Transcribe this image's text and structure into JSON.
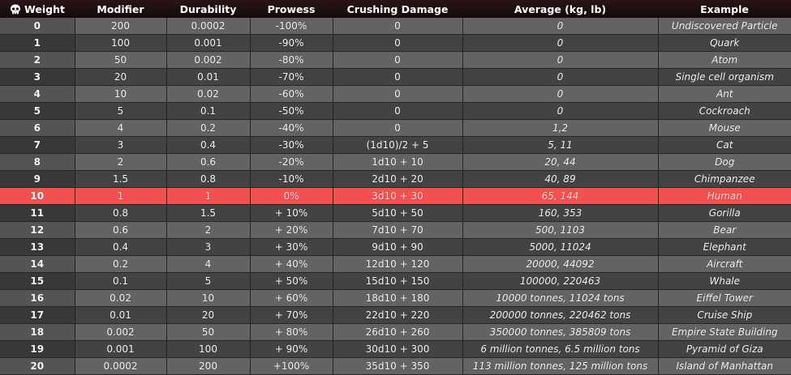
{
  "headers": {
    "weight": "Weight",
    "modifier": "Modifier",
    "durability": "Durability",
    "prowess": "Prowess",
    "crushing": "Crushing Damage",
    "average": "Average (kg, lb)",
    "example": "Example"
  },
  "header_icon": "skull-icon",
  "highlight_color": "#f35050",
  "rows": [
    {
      "weight": "0",
      "modifier": "200",
      "durability": "0.0002",
      "prowess": "-100%",
      "crushing": "0",
      "average": "0",
      "example": "Undiscovered Particle"
    },
    {
      "weight": "1",
      "modifier": "100",
      "durability": "0.001",
      "prowess": "-90%",
      "crushing": "0",
      "average": "0",
      "example": "Quark"
    },
    {
      "weight": "2",
      "modifier": "50",
      "durability": "0.002",
      "prowess": "-80%",
      "crushing": "0",
      "average": "0",
      "example": "Atom"
    },
    {
      "weight": "3",
      "modifier": "20",
      "durability": "0.01",
      "prowess": "-70%",
      "crushing": "0",
      "average": "0",
      "example": "Single cell organism"
    },
    {
      "weight": "4",
      "modifier": "10",
      "durability": "0.02",
      "prowess": "-60%",
      "crushing": "0",
      "average": "0",
      "example": "Ant"
    },
    {
      "weight": "5",
      "modifier": "5",
      "durability": "0.1",
      "prowess": "-50%",
      "crushing": "0",
      "average": "0",
      "example": "Cockroach"
    },
    {
      "weight": "6",
      "modifier": "4",
      "durability": "0.2",
      "prowess": "-40%",
      "crushing": "0",
      "average": "1,2",
      "example": "Mouse"
    },
    {
      "weight": "7",
      "modifier": "3",
      "durability": "0.4",
      "prowess": "-30%",
      "crushing": "(1d10)/2 + 5",
      "average": "5, 11",
      "example": "Cat"
    },
    {
      "weight": "8",
      "modifier": "2",
      "durability": "0.6",
      "prowess": "-20%",
      "crushing": "1d10 + 10",
      "average": "20, 44",
      "example": "Dog"
    },
    {
      "weight": "9",
      "modifier": "1.5",
      "durability": "0.8",
      "prowess": "-10%",
      "crushing": "2d10 + 20",
      "average": "40, 89",
      "example": "Chimpanzee"
    },
    {
      "weight": "10",
      "modifier": "1",
      "durability": "1",
      "prowess": "0%",
      "crushing": "3d10 + 30",
      "average": "65, 144",
      "example": "Human",
      "highlight": true
    },
    {
      "weight": "11",
      "modifier": "0.8",
      "durability": "1.5",
      "prowess": "+ 10%",
      "crushing": "5d10 + 50",
      "average": "160, 353",
      "example": "Gorilla"
    },
    {
      "weight": "12",
      "modifier": "0.6",
      "durability": "2",
      "prowess": "+ 20%",
      "crushing": "7d10 + 70",
      "average": "500, 1103",
      "example": "Bear"
    },
    {
      "weight": "13",
      "modifier": "0.4",
      "durability": "3",
      "prowess": "+ 30%",
      "crushing": "9d10 + 90",
      "average": "5000, 11024",
      "example": "Elephant"
    },
    {
      "weight": "14",
      "modifier": "0.2",
      "durability": "4",
      "prowess": "+ 40%",
      "crushing": "12d10 + 120",
      "average": "20000, 44092",
      "example": "Aircraft"
    },
    {
      "weight": "15",
      "modifier": "0.1",
      "durability": "5",
      "prowess": "+ 50%",
      "crushing": "15d10 + 150",
      "average": "100000, 220463",
      "example": "Whale"
    },
    {
      "weight": "16",
      "modifier": "0.02",
      "durability": "10",
      "prowess": "+ 60%",
      "crushing": "18d10 + 180",
      "average": "10000 tonnes, 11024 tons",
      "example": "Eiffel Tower"
    },
    {
      "weight": "17",
      "modifier": "0.01",
      "durability": "20",
      "prowess": "+ 70%",
      "crushing": "22d10 + 220",
      "average": "200000 tonnes, 220462 tons",
      "example": "Cruise Ship"
    },
    {
      "weight": "18",
      "modifier": "0.002",
      "durability": "50",
      "prowess": "+ 80%",
      "crushing": "26d10 + 260",
      "average": "350000 tonnes, 385809 tons",
      "example": "Empire State Building"
    },
    {
      "weight": "19",
      "modifier": "0.001",
      "durability": "100",
      "prowess": "+ 90%",
      "crushing": "30d10 + 300",
      "average": "6 million tonnes, 6.5 million tons",
      "example": "Pyramid of Giza"
    },
    {
      "weight": "20",
      "modifier": "0.0002",
      "durability": "200",
      "prowess": "+100%",
      "crushing": "35d10 + 350",
      "average": "113 million tonnes, 125 million tons",
      "example": "Island of Manhattan"
    }
  ]
}
